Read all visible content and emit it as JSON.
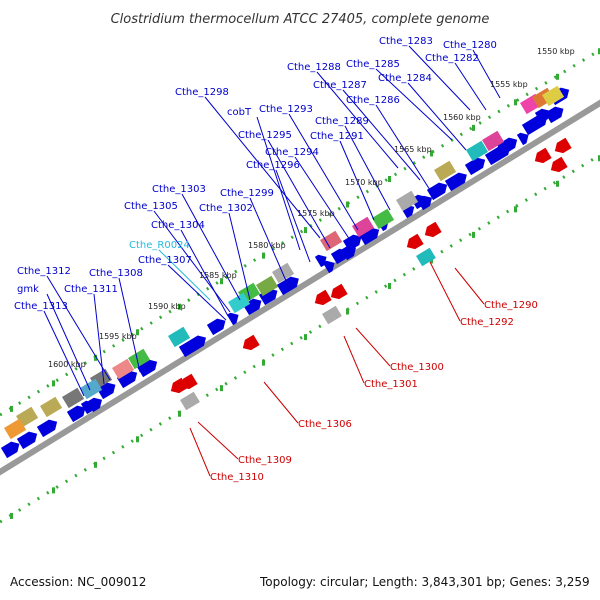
{
  "title": "Clostridium thermocellum ATCC 27405, complete genome",
  "footer": {
    "accession": "Accession: NC_009012",
    "topology": "Topology: circular; Length: 3,843,301 bp; Genes: 3,259"
  },
  "scale_labels": [
    "1550 kbp",
    "1555 kbp",
    "1560 kbp",
    "1565 kbp",
    "1570 kbp",
    "1575 kbp",
    "1580 kbp",
    "1585 kbp",
    "1590 kbp",
    "1595 kbp",
    "1600 kbp"
  ],
  "colors": {
    "forward_gene": "#0000dd",
    "reverse_gene": "#dd0000",
    "forward_label": "#0000cc",
    "reverse_label": "#cc0000",
    "rna_label": "#22bbdd",
    "backbone": "#999999",
    "tick": "#33aa33"
  },
  "forward_labels": [
    "Cthe_1283",
    "Cthe_1280",
    "Cthe_1282",
    "Cthe_1285",
    "Cthe_1288",
    "Cthe_1284",
    "Cthe_1287",
    "Cthe_1298",
    "Cthe_1286",
    "cobT",
    "Cthe_1293",
    "Cthe_1289",
    "Cthe_1295",
    "Cthe_1291",
    "Cthe_1294",
    "Cthe_1296",
    "Cthe_1303",
    "Cthe_1299",
    "Cthe_1305",
    "Cthe_1302",
    "Cthe_1304",
    "Cthe_R0024",
    "Cthe_1307",
    "Cthe_1312",
    "Cthe_1308",
    "gmk",
    "Cthe_1311",
    "Cthe_1313"
  ],
  "reverse_labels": [
    "Cthe_1290",
    "Cthe_1292",
    "Cthe_1300",
    "Cthe_1301",
    "Cthe_1306",
    "Cthe_1309",
    "Cthe_1310"
  ]
}
